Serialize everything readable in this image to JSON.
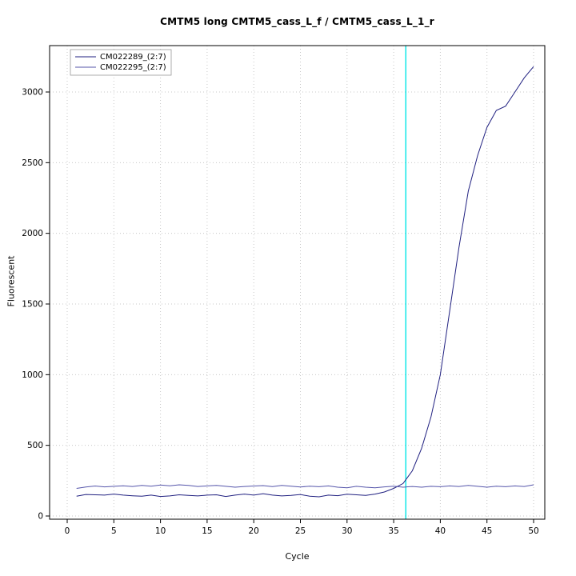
{
  "chart_data": {
    "type": "line",
    "title": "CMTM5 long CMTM5_cass_L_f / CMTM5_cass_L_1_r",
    "xlabel": "Cycle",
    "ylabel": "Fluorescent",
    "xlim": [
      0,
      50
    ],
    "ylim": [
      0,
      3200
    ],
    "x_ticks": [
      0,
      5,
      10,
      15,
      20,
      25,
      30,
      35,
      40,
      45,
      50
    ],
    "y_ticks": [
      0,
      500,
      1000,
      1500,
      2000,
      2500,
      3000
    ],
    "grid": "dotted",
    "legend_position": "top-left",
    "threshold_line": {
      "x": 36.3,
      "color": "#00E5E5"
    },
    "x": [
      1,
      2,
      3,
      4,
      5,
      6,
      7,
      8,
      9,
      10,
      11,
      12,
      13,
      14,
      15,
      16,
      17,
      18,
      19,
      20,
      21,
      22,
      23,
      24,
      25,
      26,
      27,
      28,
      29,
      30,
      31,
      32,
      33,
      34,
      35,
      36,
      37,
      38,
      39,
      40,
      41,
      42,
      43,
      44,
      45,
      46,
      47,
      48,
      49,
      50
    ],
    "series": [
      {
        "name": "CM022289_(2:7)",
        "color": "#202080",
        "values": [
          140,
          152,
          150,
          148,
          155,
          148,
          143,
          140,
          148,
          138,
          142,
          150,
          146,
          142,
          148,
          150,
          138,
          148,
          155,
          148,
          158,
          148,
          142,
          146,
          152,
          140,
          136,
          148,
          144,
          154,
          150,
          146,
          155,
          170,
          195,
          230,
          320,
          480,
          700,
          1000,
          1450,
          1900,
          2300,
          2550,
          2750,
          2870,
          2900,
          3000,
          3100,
          3180
        ]
      },
      {
        "name": "CM022295_(2:7)",
        "color": "#5555AA",
        "values": [
          195,
          205,
          212,
          206,
          210,
          214,
          209,
          216,
          211,
          219,
          214,
          221,
          216,
          209,
          213,
          217,
          210,
          204,
          209,
          212,
          215,
          208,
          216,
          211,
          205,
          211,
          207,
          213,
          204,
          199,
          210,
          204,
          199,
          206,
          211,
          204,
          209,
          204,
          210,
          207,
          213,
          209,
          216,
          210,
          204,
          211,
          207,
          213,
          209,
          221
        ]
      }
    ]
  }
}
